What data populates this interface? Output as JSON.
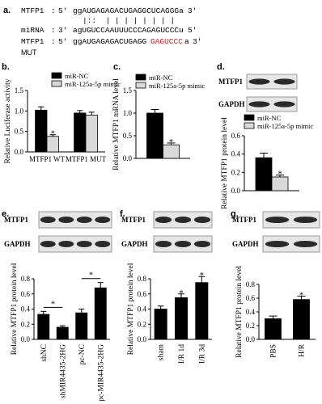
{
  "sequence": {
    "panel": "a.",
    "rows": [
      {
        "name": "MTFP1",
        "sep": ":",
        "end5": "5'",
        "seq": "ggAUGAGAGACUGAGGCUCAGGGa",
        "end3": "3'"
      },
      {
        "pairs": "|::  | | | | | | | |"
      },
      {
        "name": "miRNA",
        "sep": ":",
        "end5": "3'",
        "seq": "agUGUCCAAUUUCCCAGAGUCCCu",
        "end3": "5'"
      },
      {
        "name": "MTFP1",
        "sep": ":",
        "end5": "5'",
        "seq": "ggAUGAGAGACUGAGG",
        "mut": "GAGUCCC",
        "tail": "a",
        "end3": "3'",
        "tag": "MUT"
      }
    ]
  },
  "chart_data": [
    {
      "type": "bar",
      "panel": "b.",
      "ylabel": "Relative Luciferase activity",
      "categories": [
        "MTFP1 WT",
        "MTFP1 MUT"
      ],
      "series": [
        {
          "name": "miR-NC",
          "color": "#000000",
          "values": [
            1.02,
            0.95
          ],
          "errors": [
            0.08,
            0.06
          ]
        },
        {
          "name": "miR-125a-5p mimic",
          "color": "#d9d9d9",
          "values": [
            0.38,
            0.9
          ],
          "errors": [
            0.04,
            0.07
          ]
        }
      ],
      "ylim": [
        0,
        1.5
      ],
      "yticks": [
        {
          "value": 0,
          "label": "0.0"
        },
        {
          "value": 0.5,
          "label": "0.5"
        },
        {
          "value": 1,
          "label": "1.0"
        },
        {
          "value": 1.5,
          "label": "1.5"
        }
      ],
      "annotations": [
        "*"
      ]
    },
    {
      "type": "bar",
      "panel": "c.",
      "ylabel": "Relative MTFP1 mRNA level",
      "categories": [
        null
      ],
      "series": [
        {
          "name": "miR-NC",
          "color": "#000000",
          "values": [
            1.0
          ],
          "errors": [
            0.08
          ]
        },
        {
          "name": "miR-125a-5p mimic",
          "color": "#d9d9d9",
          "values": [
            0.3
          ],
          "errors": [
            0.04
          ]
        }
      ],
      "ylim": [
        0,
        1.5
      ],
      "yticks": [
        {
          "value": 0,
          "label": "0.0"
        },
        {
          "value": 0.5,
          "label": "0.5"
        },
        {
          "value": 1,
          "label": "1.0"
        },
        {
          "value": 1.5,
          "label": "1.5"
        }
      ],
      "annotations": [
        "*"
      ]
    },
    {
      "type": "bar",
      "panel": "d.",
      "blot_labels": [
        "MTFP1",
        "GAPDH"
      ],
      "ylabel": "Relative MTFP1 protein level",
      "categories": [
        null
      ],
      "series": [
        {
          "name": "miR-NC",
          "color": "#000000",
          "values": [
            0.36
          ],
          "errors": [
            0.05
          ]
        },
        {
          "name": "miR-125a-5p mimic",
          "color": "#d9d9d9",
          "values": [
            0.15
          ],
          "errors": [
            0.02
          ]
        }
      ],
      "ylim": [
        0,
        0.6
      ],
      "yticks": [
        {
          "value": 0,
          "label": "0.0"
        },
        {
          "value": 0.2,
          "label": "0.2"
        },
        {
          "value": 0.4,
          "label": "0.4"
        },
        {
          "value": 0.6,
          "label": "0.6"
        }
      ],
      "annotations": [
        "*"
      ]
    },
    {
      "type": "bar",
      "panel": "e.",
      "blot_labels": [
        "MTFP1",
        "GAPDH"
      ],
      "ylabel": "Relative MTFP1 protein level",
      "categories": [
        "shNC",
        "shMIR4435-2HG",
        "pc-NC",
        "pc-MIR4435-2HG"
      ],
      "series": [
        {
          "color": "#000000",
          "values": [
            0.33,
            0.16,
            0.35,
            0.68
          ],
          "errors": [
            0.04,
            0.02,
            0.05,
            0.07
          ]
        }
      ],
      "ylim": [
        0,
        0.8
      ],
      "yticks": [
        {
          "value": 0,
          "label": "0.0"
        },
        {
          "value": 0.2,
          "label": "0.2"
        },
        {
          "value": 0.4,
          "label": "0.4"
        },
        {
          "value": 0.6,
          "label": "0.6"
        },
        {
          "value": 0.8,
          "label": "0.8"
        }
      ],
      "annotations": [
        "*",
        "*"
      ]
    },
    {
      "type": "bar",
      "panel": "f.",
      "blot_labels": [
        "MTFP1",
        "GAPDH"
      ],
      "ylabel": "Relative MTFP1 protein level",
      "categories": [
        "sham",
        "I/R 1d",
        "I/R 3d"
      ],
      "series": [
        {
          "color": "#000000",
          "values": [
            0.4,
            0.55,
            0.75
          ],
          "errors": [
            0.04,
            0.05,
            0.08
          ]
        }
      ],
      "ylim": [
        0,
        0.8
      ],
      "yticks": [
        {
          "value": 0,
          "label": "0.0"
        },
        {
          "value": 0.2,
          "label": "0.2"
        },
        {
          "value": 0.4,
          "label": "0.4"
        },
        {
          "value": 0.6,
          "label": "0.6"
        },
        {
          "value": 0.8,
          "label": "0.8"
        }
      ],
      "annotations": [
        "*",
        "*"
      ]
    },
    {
      "type": "bar",
      "panel": "g.",
      "blot_labels": [
        "MTFP1",
        "GAPDH"
      ],
      "ylabel": "Relative MTFP1 protein level",
      "categories": [
        "PBS",
        "H/R"
      ],
      "series": [
        {
          "color": "#000000",
          "values": [
            0.3,
            0.58
          ],
          "errors": [
            0.04,
            0.05
          ]
        }
      ],
      "ylim": [
        0,
        0.8
      ],
      "yticks": [
        {
          "value": 0,
          "label": "0.0"
        },
        {
          "value": 0.2,
          "label": "0.2"
        },
        {
          "value": 0.4,
          "label": "0.4"
        },
        {
          "value": 0.6,
          "label": "0.6"
        },
        {
          "value": 0.8,
          "label": "0.8"
        }
      ],
      "annotations": [
        "*"
      ]
    }
  ]
}
